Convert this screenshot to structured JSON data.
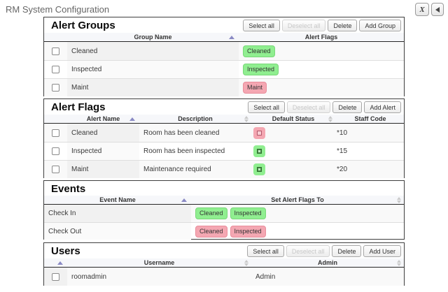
{
  "page": {
    "title": "RM System Configuration"
  },
  "window_controls": {
    "close_label": "X",
    "back_icon": "left-arrow"
  },
  "colors": {
    "badge_green": "#90ee90",
    "badge_pink": "#f4a7b2",
    "sort_active": "#8a8ac4"
  },
  "panels": {
    "alert_groups": {
      "title": "Alert Groups",
      "buttons": {
        "select_all": "Select all",
        "deselect_all": "Deselect all",
        "delete": "Delete",
        "add": "Add Group"
      },
      "columns": [
        "Group Name",
        "Alert Flags"
      ],
      "rows": [
        {
          "name": "Cleaned",
          "flags": [
            {
              "label": "Cleaned",
              "color": "green"
            }
          ]
        },
        {
          "name": "Inspected",
          "flags": [
            {
              "label": "Inspected",
              "color": "green"
            }
          ]
        },
        {
          "name": "Maint",
          "flags": [
            {
              "label": "Maint",
              "color": "pink"
            }
          ]
        }
      ]
    },
    "alert_flags": {
      "title": "Alert Flags",
      "buttons": {
        "select_all": "Select all",
        "deselect_all": "Deselect all",
        "delete": "Delete",
        "add": "Add Alert"
      },
      "columns": [
        "Alert Name",
        "Description",
        "Default Status",
        "Staff Code"
      ],
      "rows": [
        {
          "name": "Cleaned",
          "description": "Room has been cleaned",
          "default_status": "unchecked",
          "staff_code": "*10"
        },
        {
          "name": "Inspected",
          "description": "Room has been inspected",
          "default_status": "checked",
          "staff_code": "*15"
        },
        {
          "name": "Maint",
          "description": "Maintenance required",
          "default_status": "checked",
          "staff_code": "*20"
        }
      ]
    },
    "events": {
      "title": "Events",
      "columns": [
        "Event Name",
        "Set Alert Flags To"
      ],
      "rows": [
        {
          "name": "Check In",
          "flags": [
            {
              "label": "Cleaned",
              "color": "green"
            },
            {
              "label": "Inspected",
              "color": "green"
            }
          ]
        },
        {
          "name": "Check Out",
          "flags": [
            {
              "label": "Cleaned",
              "color": "pink"
            },
            {
              "label": "Inspected",
              "color": "pink"
            }
          ]
        }
      ]
    },
    "users": {
      "title": "Users",
      "buttons": {
        "select_all": "Select all",
        "deselect_all": "Deselect all",
        "delete": "Delete",
        "add": "Add User"
      },
      "columns": [
        "Username",
        "Admin"
      ],
      "rows": [
        {
          "username": "roomadmin",
          "admin": "Admin"
        }
      ]
    }
  }
}
